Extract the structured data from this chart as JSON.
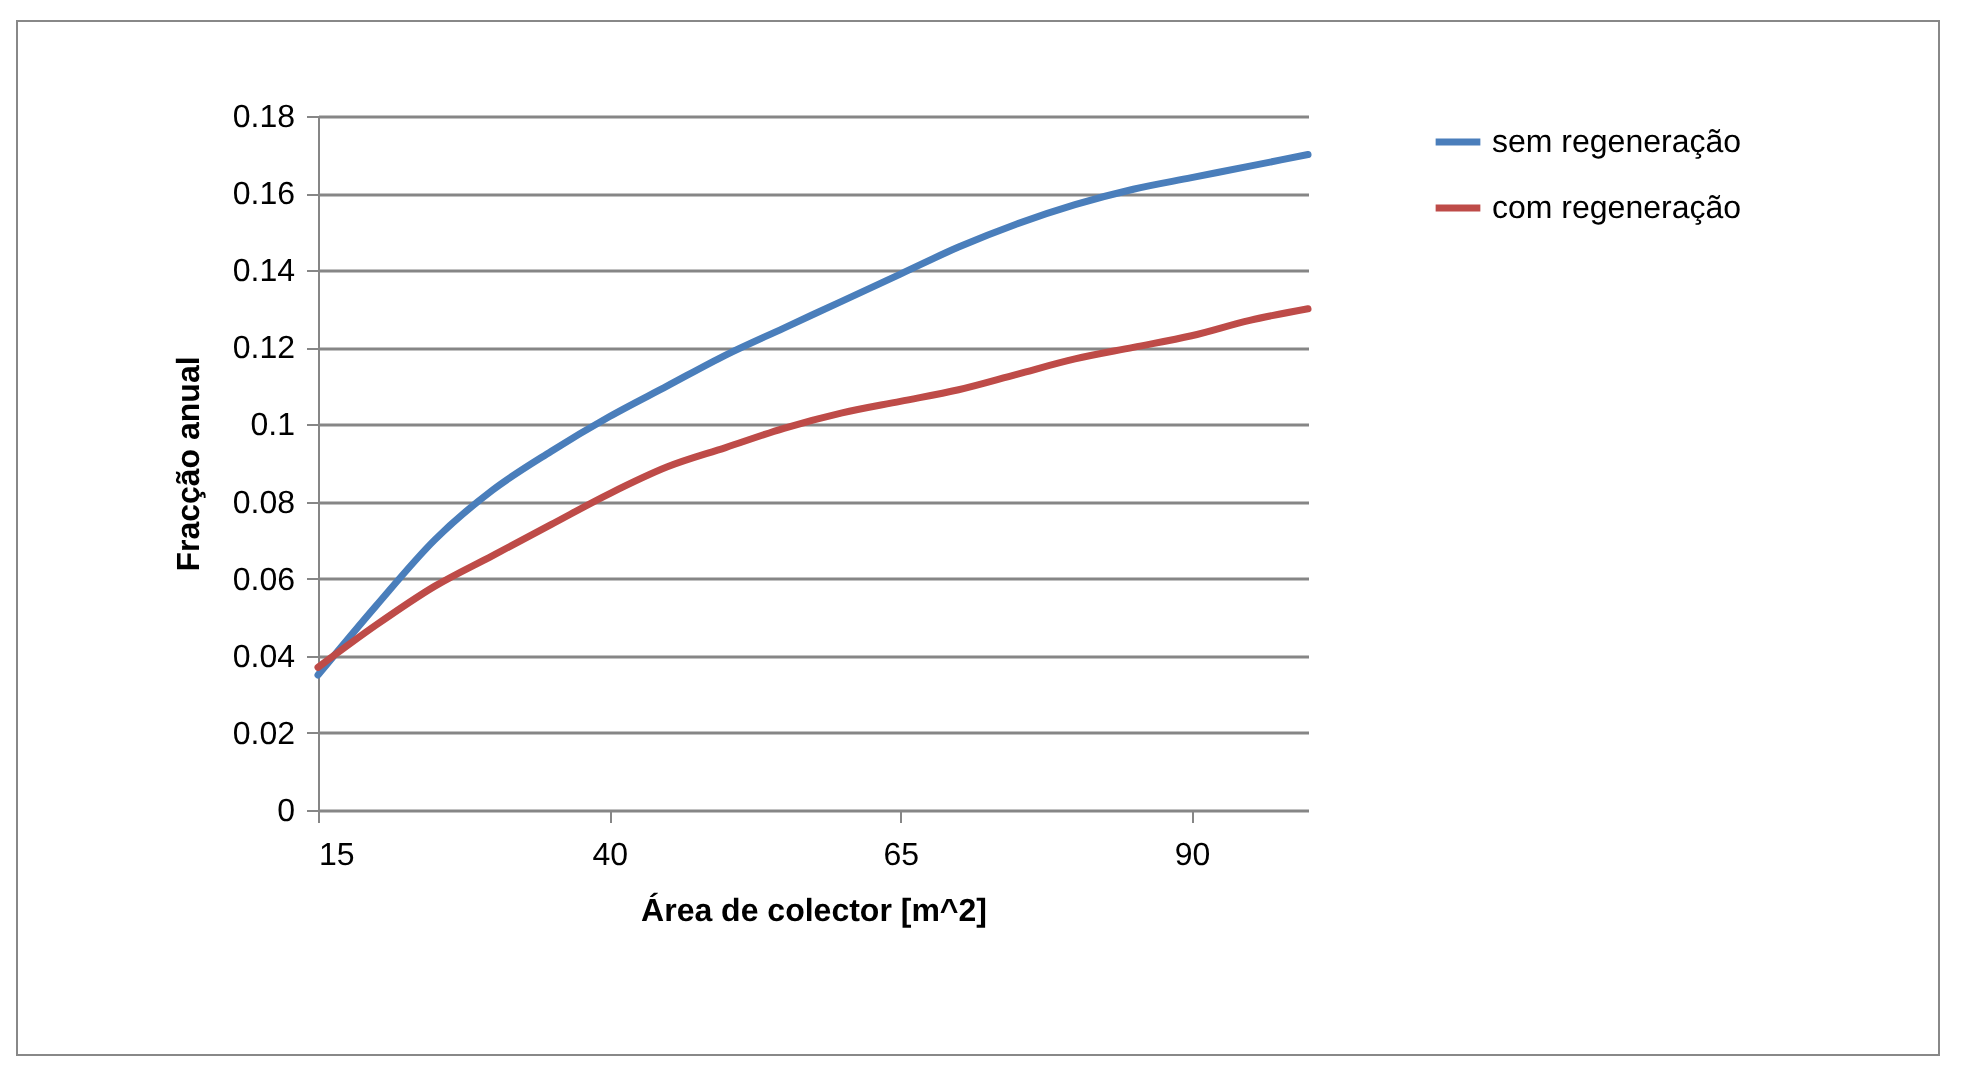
{
  "chart_data": {
    "type": "line",
    "xlabel": "Área de colector [m^2]",
    "ylabel": "Fracção anual",
    "x": [
      15,
      20,
      25,
      30,
      35,
      40,
      45,
      50,
      55,
      60,
      65,
      70,
      75,
      80,
      85,
      90,
      95,
      100
    ],
    "series": [
      {
        "name": "sem regeneração",
        "color": "#4a7ebb",
        "values": [
          0.035,
          0.053,
          0.07,
          0.083,
          0.093,
          0.102,
          0.11,
          0.118,
          0.125,
          0.132,
          0.139,
          0.146,
          0.152,
          0.157,
          0.161,
          0.164,
          0.167,
          0.17
        ]
      },
      {
        "name": "com regeneração",
        "color": "#be4b48",
        "values": [
          0.037,
          0.048,
          0.058,
          0.066,
          0.074,
          0.082,
          0.089,
          0.094,
          0.099,
          0.103,
          0.106,
          0.109,
          0.113,
          0.117,
          0.12,
          0.123,
          0.127,
          0.13
        ]
      }
    ],
    "xlim": [
      15,
      100
    ],
    "xticks": [
      15,
      40,
      65,
      90
    ],
    "ylim": [
      0,
      0.18
    ],
    "yticks": [
      0,
      0.02,
      0.04,
      0.06,
      0.08,
      0.1,
      0.12,
      0.14,
      0.16,
      0.18
    ],
    "grid": "y",
    "legend": "right",
    "marker": "none",
    "line_style": "solid"
  }
}
